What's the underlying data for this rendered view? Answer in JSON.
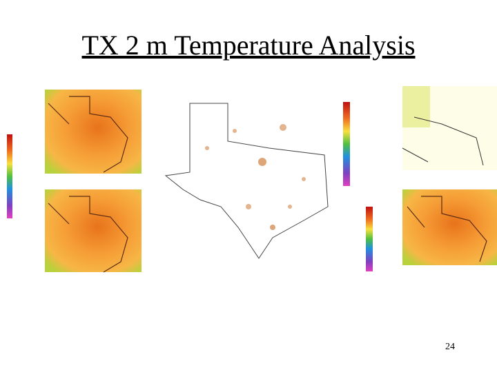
{
  "header": {
    "title": "TX 2 m Temperature Analysis"
  },
  "footer": {
    "page_number": "24"
  }
}
